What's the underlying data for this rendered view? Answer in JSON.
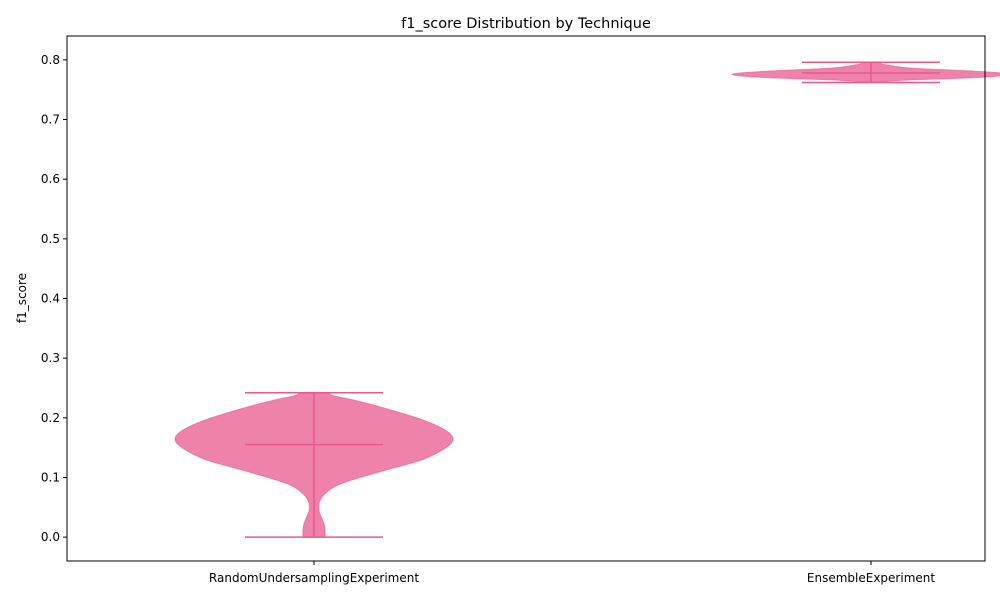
{
  "chart_data": {
    "type": "violin",
    "title": "f1_score Distribution by Technique",
    "xlabel": "",
    "ylabel": "f1_score",
    "ylim": [
      -0.04,
      0.84
    ],
    "yticks": [
      0.0,
      0.1,
      0.2,
      0.3,
      0.4,
      0.5,
      0.6,
      0.7,
      0.8
    ],
    "ytick_labels": [
      "0.0",
      "0.1",
      "0.2",
      "0.3",
      "0.4",
      "0.5",
      "0.6",
      "0.7",
      "0.8"
    ],
    "color": "#e8588f",
    "grid": false,
    "categories": [
      "RandomUndersamplingExperiment",
      "EnsembleExperiment"
    ],
    "violins": [
      {
        "category": "RandomUndersamplingExperiment",
        "min": 0.0,
        "median": 0.155,
        "max": 0.242,
        "density": [
          [
            0.0,
            0.08
          ],
          [
            0.01,
            0.08
          ],
          [
            0.02,
            0.075
          ],
          [
            0.03,
            0.06
          ],
          [
            0.045,
            0.035
          ],
          [
            0.06,
            0.04
          ],
          [
            0.075,
            0.09
          ],
          [
            0.09,
            0.2
          ],
          [
            0.11,
            0.48
          ],
          [
            0.13,
            0.78
          ],
          [
            0.15,
            0.95
          ],
          [
            0.165,
            1.0
          ],
          [
            0.18,
            0.94
          ],
          [
            0.195,
            0.8
          ],
          [
            0.21,
            0.6
          ],
          [
            0.22,
            0.45
          ],
          [
            0.23,
            0.28
          ],
          [
            0.237,
            0.14
          ],
          [
            0.242,
            0.08
          ]
        ]
      },
      {
        "category": "EnsembleExperiment",
        "min": 0.762,
        "median": 0.778,
        "max": 0.796,
        "density": [
          [
            0.762,
            0.04
          ],
          [
            0.766,
            0.25
          ],
          [
            0.771,
            0.8
          ],
          [
            0.776,
            1.0
          ],
          [
            0.781,
            0.75
          ],
          [
            0.786,
            0.3
          ],
          [
            0.79,
            0.15
          ],
          [
            0.793,
            0.08
          ],
          [
            0.796,
            0.05
          ]
        ]
      }
    ]
  }
}
